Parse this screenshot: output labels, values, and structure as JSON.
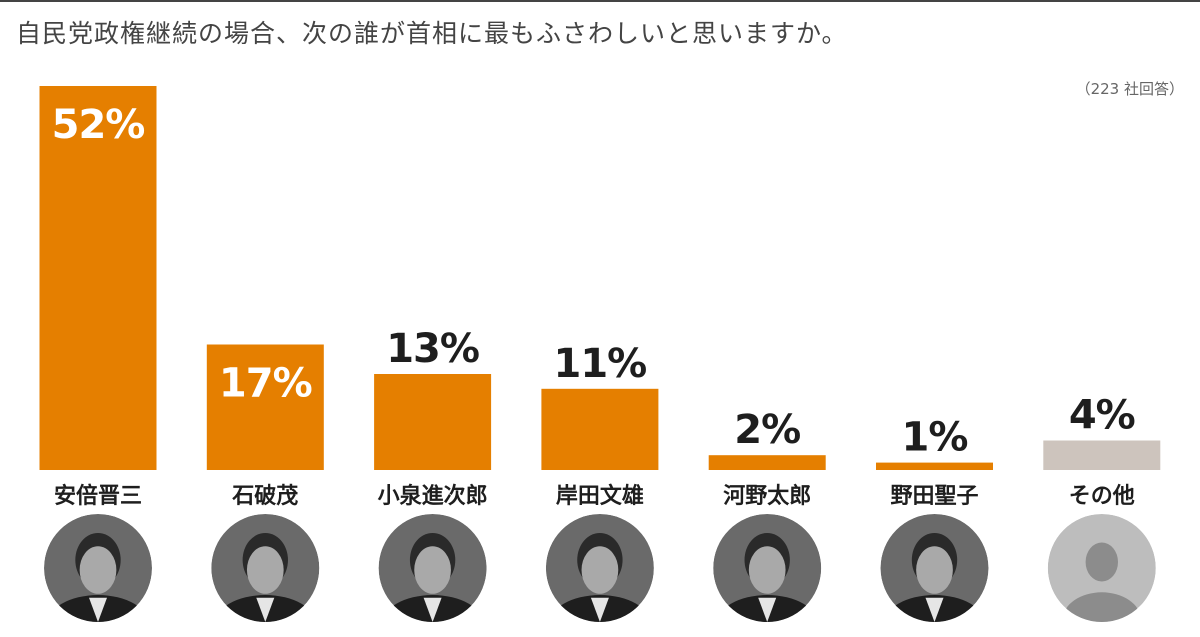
{
  "chart_data": {
    "type": "bar",
    "title": "自民党政権継続の場合、次の誰が首相に最もふさわしいと思いますか。",
    "note": "（223 社回答）",
    "categories": [
      "安倍晋三",
      "石破茂",
      "小泉進次郎",
      "岸田文雄",
      "河野太郎",
      "野田聖子",
      "その他"
    ],
    "values": [
      52,
      17,
      13,
      11,
      2,
      1,
      4
    ],
    "value_labels": [
      "52%",
      "17%",
      "13%",
      "11%",
      "2%",
      "1%",
      "4%"
    ],
    "unit": "%",
    "ylim": [
      0,
      52
    ],
    "grid": false,
    "legend": "none",
    "colors": {
      "main": "#e57f00",
      "other": "#cdc4bd",
      "avatar_placeholder": "#bdbdbd",
      "avatar_photo": "#3a3a3a"
    }
  },
  "avatars": {
    "icons": [
      "person-photo-icon",
      "person-photo-icon",
      "person-photo-icon",
      "person-photo-icon",
      "person-photo-icon",
      "person-photo-icon",
      "person-placeholder-icon"
    ]
  }
}
